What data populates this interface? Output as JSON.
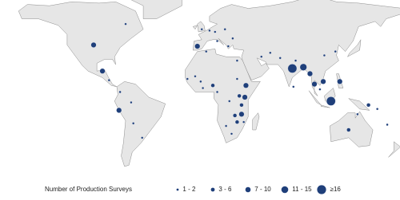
{
  "legend": {
    "title": "Number of Production Surveys",
    "color": "#1f3f7a",
    "bins": [
      {
        "label": "1 - 2",
        "min": 1,
        "max": 2
      },
      {
        "label": "3 - 6",
        "min": 3,
        "max": 6
      },
      {
        "label": "7 - 10",
        "min": 7,
        "max": 10
      },
      {
        "label": "11 - 15",
        "min": 11,
        "max": 15
      },
      {
        "label": "≥16",
        "min": 16
      }
    ]
  },
  "points": [
    {
      "lon": -71,
      "lat": 56,
      "value": 2
    },
    {
      "lon": -100,
      "lat": 40,
      "value": 8
    },
    {
      "lon": -92,
      "lat": 20,
      "value": 10
    },
    {
      "lon": -86,
      "lat": 13,
      "value": 2
    },
    {
      "lon": -76,
      "lat": 4,
      "value": 1
    },
    {
      "lon": -77,
      "lat": -10,
      "value": 8
    },
    {
      "lon": -64,
      "lat": -20,
      "value": 2
    },
    {
      "lon": -56,
      "lat": -31,
      "value": 1
    },
    {
      "lon": -66,
      "lat": -4,
      "value": 1
    },
    {
      "lon": -6,
      "lat": 39,
      "value": 8
    },
    {
      "lon": -2,
      "lat": 52,
      "value": 1
    },
    {
      "lon": 5,
      "lat": 51,
      "value": 2
    },
    {
      "lon": 10,
      "lat": 50,
      "value": 2
    },
    {
      "lon": 19,
      "lat": 52,
      "value": 1
    },
    {
      "lon": 12,
      "lat": 43,
      "value": 2
    },
    {
      "lon": 22,
      "lat": 39,
      "value": 1
    },
    {
      "lon": 2,
      "lat": 35,
      "value": 1
    },
    {
      "lon": 26,
      "lat": 45,
      "value": 1
    },
    {
      "lon": 38,
      "lat": 9,
      "value": 10
    },
    {
      "lon": 37,
      "lat": 0,
      "value": 8
    },
    {
      "lon": 34,
      "lat": -6,
      "value": 6
    },
    {
      "lon": 32,
      "lat": 1,
      "value": 5
    },
    {
      "lon": 34,
      "lat": -13,
      "value": 8
    },
    {
      "lon": 28,
      "lat": -14,
      "value": 5
    },
    {
      "lon": 36,
      "lat": -19,
      "value": 2
    },
    {
      "lon": 30,
      "lat": -19,
      "value": 5
    },
    {
      "lon": 25,
      "lat": -28,
      "value": 2
    },
    {
      "lon": 20,
      "lat": -22,
      "value": 1
    },
    {
      "lon": -1,
      "lat": 7,
      "value": 2
    },
    {
      "lon": 8,
      "lat": 9,
      "value": 5
    },
    {
      "lon": -3,
      "lat": 12,
      "value": 2
    },
    {
      "lon": -15,
      "lat": 14,
      "value": 1
    },
    {
      "lon": -8,
      "lat": 16,
      "value": 1
    },
    {
      "lon": 12,
      "lat": 4,
      "value": 2
    },
    {
      "lon": 23,
      "lat": -3,
      "value": 2
    },
    {
      "lon": 30,
      "lat": 14,
      "value": 1
    },
    {
      "lon": 30,
      "lat": 28,
      "value": 1
    },
    {
      "lon": 52,
      "lat": 31,
      "value": 1
    },
    {
      "lon": 69,
      "lat": 30,
      "value": 2
    },
    {
      "lon": 60,
      "lat": 34,
      "value": 1
    },
    {
      "lon": 80,
      "lat": 22,
      "value": 16
    },
    {
      "lon": 90,
      "lat": 23,
      "value": 12
    },
    {
      "lon": 83,
      "lat": 28,
      "value": 2
    },
    {
      "lon": 96,
      "lat": 18,
      "value": 7
    },
    {
      "lon": 100,
      "lat": 10,
      "value": 8
    },
    {
      "lon": 108,
      "lat": 12,
      "value": 8
    },
    {
      "lon": 105,
      "lat": 6,
      "value": 2
    },
    {
      "lon": 109,
      "lat": 32,
      "value": 2
    },
    {
      "lon": 119,
      "lat": 35,
      "value": 1
    },
    {
      "lon": 123,
      "lat": 12,
      "value": 10
    },
    {
      "lon": 115,
      "lat": -3,
      "value": 16
    },
    {
      "lon": 149,
      "lat": -6,
      "value": 6
    },
    {
      "lon": 157,
      "lat": -9,
      "value": 2
    },
    {
      "lon": 166,
      "lat": -21,
      "value": 1
    },
    {
      "lon": 139,
      "lat": -13,
      "value": 1
    },
    {
      "lon": 131,
      "lat": -25,
      "value": 5
    },
    {
      "lon": 81,
      "lat": 8,
      "value": 2
    }
  ]
}
